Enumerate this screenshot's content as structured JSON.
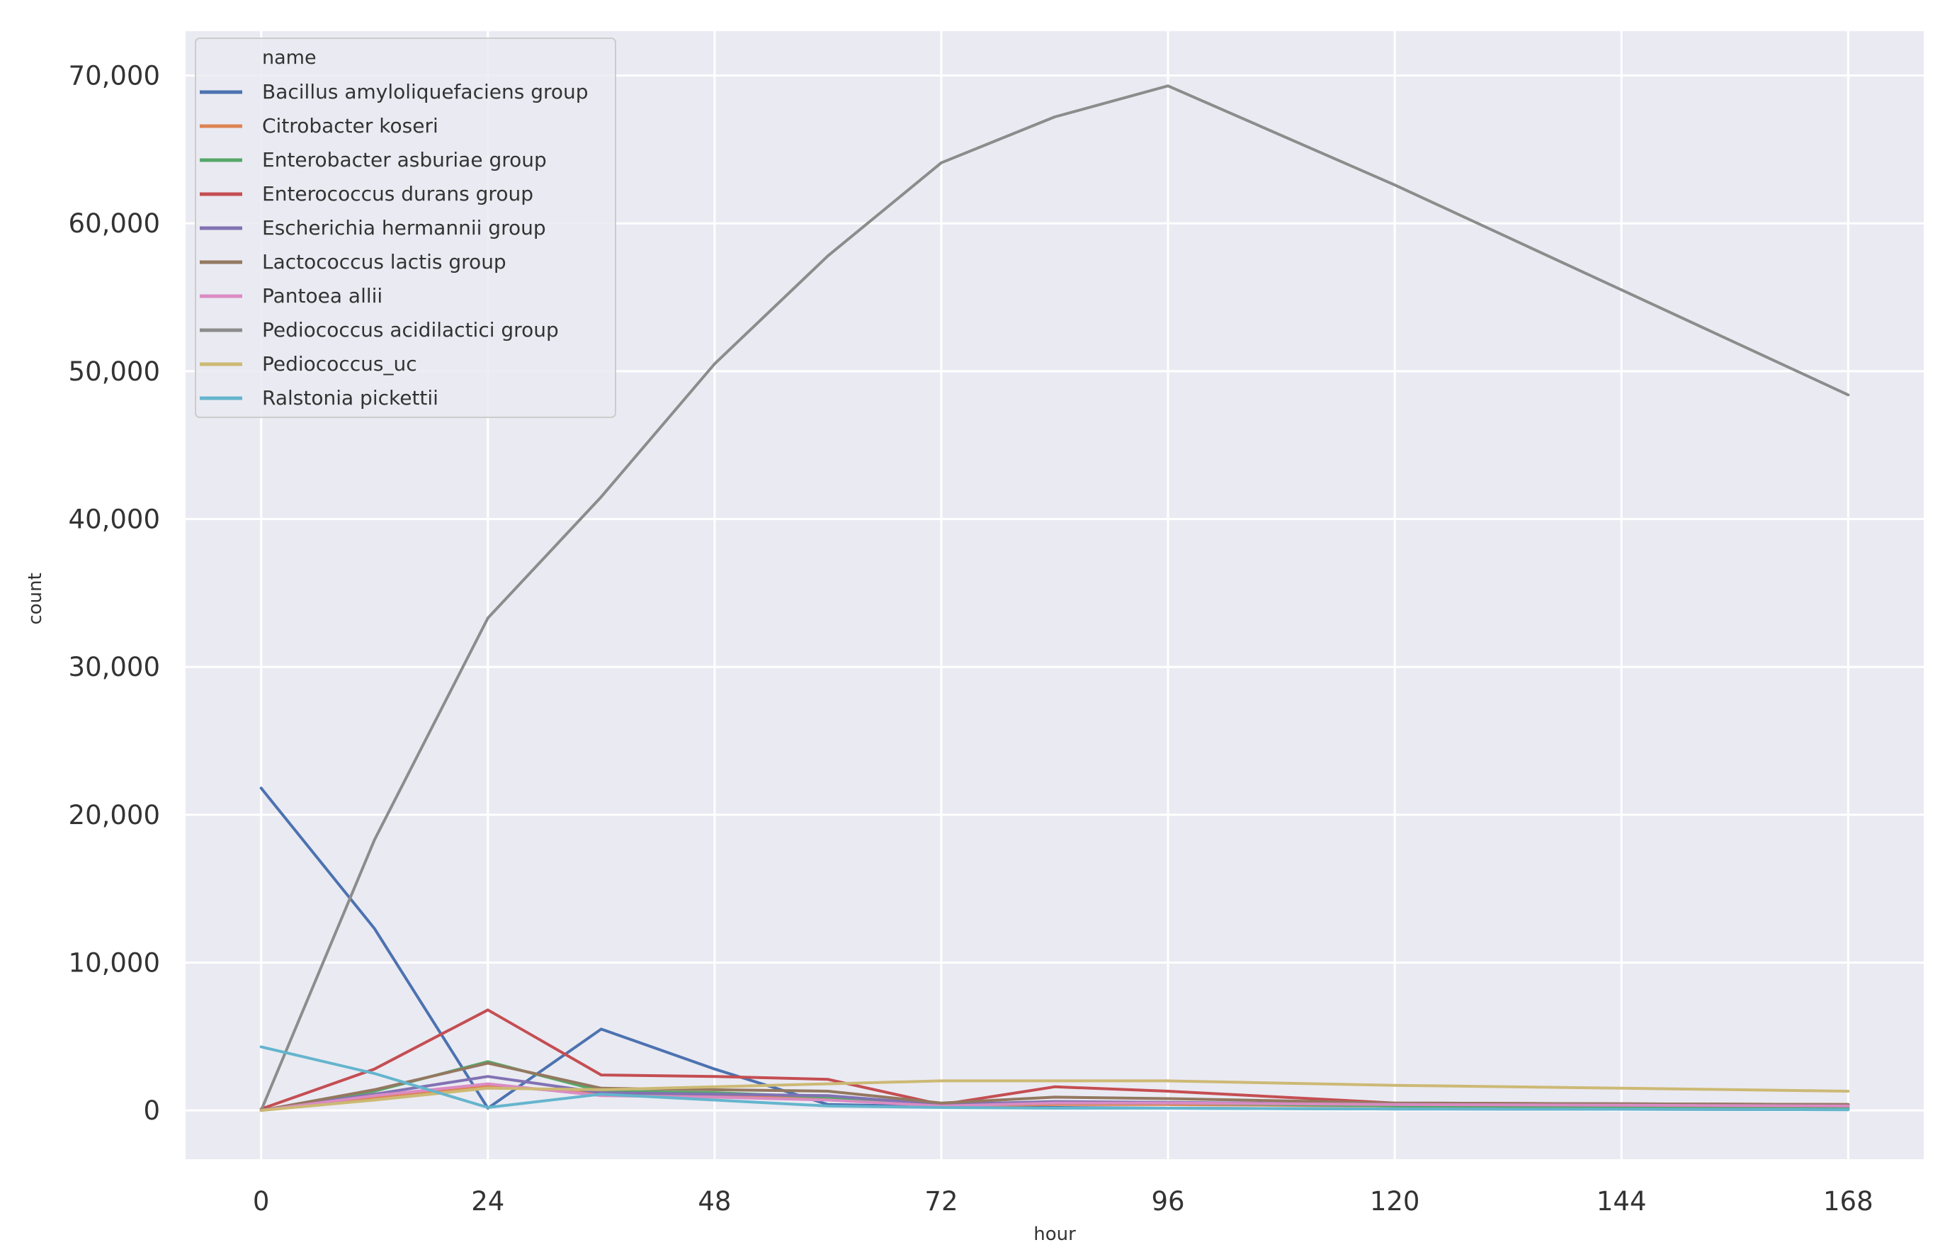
{
  "chart_data": {
    "type": "line",
    "title": "",
    "xlabel": "hour",
    "ylabel": "count",
    "xlim": [
      -8,
      176
    ],
    "ylim": [
      -3300,
      73000
    ],
    "x_ticks": [
      0,
      24,
      48,
      72,
      96,
      120,
      144,
      168
    ],
    "y_ticks": [
      0,
      10000,
      20000,
      30000,
      40000,
      50000,
      60000,
      70000
    ],
    "y_tick_labels": [
      "0",
      "10,000",
      "20,000",
      "30,000",
      "40,000",
      "50,000",
      "60,000",
      "70,000"
    ],
    "grid": true,
    "background": "#eaeaf2",
    "legend": {
      "title": "name",
      "placement": "top-left"
    },
    "series": [
      {
        "name": "Bacillus amyloliquefaciens group",
        "color": "#4c72b0",
        "x": [
          0,
          12,
          24,
          36,
          48,
          60,
          72,
          84,
          96,
          120,
          144,
          168
        ],
        "y": [
          21800,
          12300,
          150,
          5500,
          2800,
          400,
          250,
          200,
          150,
          100,
          80,
          50
        ]
      },
      {
        "name": "Citrobacter koseri",
        "color": "#dd8452",
        "x": [
          0,
          12,
          24,
          36,
          48,
          60,
          72,
          84,
          96,
          120,
          144,
          168
        ],
        "y": [
          0,
          900,
          1700,
          1100,
          1000,
          800,
          300,
          400,
          400,
          300,
          200,
          150
        ]
      },
      {
        "name": "Enterobacter asburiae group",
        "color": "#55a868",
        "x": [
          0,
          12,
          24,
          36,
          48,
          60,
          72,
          84,
          96,
          120,
          144,
          168
        ],
        "y": [
          0,
          1300,
          3300,
          1300,
          1200,
          900,
          300,
          500,
          500,
          300,
          250,
          200
        ]
      },
      {
        "name": "Enterococcus durans group",
        "color": "#c44e52",
        "x": [
          0,
          12,
          24,
          36,
          48,
          60,
          72,
          84,
          96,
          120,
          144,
          168
        ],
        "y": [
          100,
          2800,
          6800,
          2400,
          2300,
          2100,
          400,
          1600,
          1300,
          500,
          450,
          400
        ]
      },
      {
        "name": "Escherichia hermannii group",
        "color": "#8172b3",
        "x": [
          0,
          12,
          24,
          36,
          48,
          60,
          72,
          84,
          96,
          120,
          144,
          168
        ],
        "y": [
          0,
          1100,
          2300,
          1200,
          1100,
          1000,
          400,
          600,
          550,
          400,
          350,
          300
        ]
      },
      {
        "name": "Lactococcus lactis group",
        "color": "#937860",
        "x": [
          0,
          12,
          24,
          36,
          48,
          60,
          72,
          84,
          96,
          120,
          144,
          168
        ],
        "y": [
          0,
          1400,
          3200,
          1500,
          1400,
          1300,
          500,
          900,
          800,
          500,
          450,
          400
        ]
      },
      {
        "name": "Pantoea allii",
        "color": "#da8bc3",
        "x": [
          0,
          12,
          24,
          36,
          48,
          60,
          72,
          84,
          96,
          120,
          144,
          168
        ],
        "y": [
          0,
          1000,
          1800,
          1000,
          900,
          700,
          300,
          500,
          500,
          400,
          350,
          300
        ]
      },
      {
        "name": "Pediococcus acidilactici group",
        "color": "#8c8c8c",
        "x": [
          0,
          12,
          24,
          36,
          48,
          60,
          72,
          84,
          96,
          120,
          144,
          168
        ],
        "y": [
          0,
          18300,
          33300,
          41500,
          50500,
          57800,
          64100,
          67200,
          69300,
          62600,
          55500,
          48400
        ]
      },
      {
        "name": "Pediococcus_uc",
        "color": "#ccb974",
        "x": [
          0,
          12,
          24,
          36,
          48,
          60,
          72,
          84,
          96,
          120,
          144,
          168
        ],
        "y": [
          0,
          700,
          1500,
          1400,
          1600,
          1800,
          2000,
          2000,
          2000,
          1700,
          1500,
          1300
        ]
      },
      {
        "name": "Ralstonia pickettii",
        "color": "#64b5cd",
        "x": [
          0,
          12,
          24,
          36,
          48,
          60,
          72,
          84,
          96,
          120,
          144,
          168
        ],
        "y": [
          4300,
          2500,
          200,
          1100,
          700,
          300,
          200,
          150,
          150,
          100,
          80,
          50
        ]
      }
    ]
  }
}
